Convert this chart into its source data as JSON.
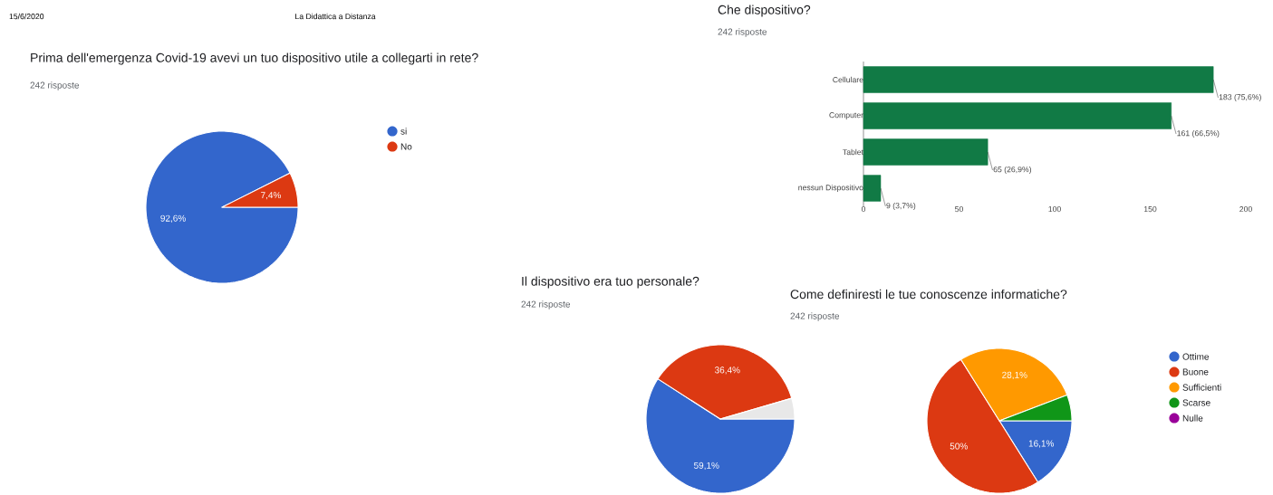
{
  "chart_data": [
    {
      "type": "pie",
      "title": "Prima dell'emergenza Covid-19 avevi un tuo dispositivo utile a collegarti in rete?",
      "subtitle": "242 risposte",
      "annotations": [
        "15/6/2020",
        "La Didattica a Distanza"
      ],
      "categories": [
        "si",
        "No"
      ],
      "values": [
        92.6,
        7.4
      ],
      "colors": [
        "#3366cc",
        "#dc3912"
      ],
      "value_labels": [
        "92,6%",
        "7,4%"
      ],
      "legend": "right"
    },
    {
      "type": "bar",
      "orientation": "horizontal",
      "title": "Che dispositivo?",
      "subtitle": "242 risposte",
      "categories": [
        "Cellulare",
        "Computer",
        "Tablet",
        "nessun Dispositivo"
      ],
      "values": [
        183,
        161,
        65,
        9
      ],
      "color": "#117a45",
      "value_labels": [
        "183 (75,6%)",
        "161 (66,5%)",
        "65 (26,9%)",
        "9 (3,7%)"
      ],
      "xlim": [
        0,
        200
      ],
      "xticks": [
        0,
        50,
        100,
        150,
        200
      ]
    },
    {
      "type": "pie",
      "title": "Il dispositivo era tuo personale?",
      "subtitle": "242 risposte",
      "categories": [
        null,
        null,
        null
      ],
      "values": [
        59.1,
        36.4,
        4.5
      ],
      "colors": [
        "#3366cc",
        "#dc3912",
        "#e8e8e8"
      ],
      "value_labels": [
        "59,1%",
        "36,4%",
        null
      ]
    },
    {
      "type": "pie",
      "title": "Come definiresti le tue conoscenze informatiche?",
      "subtitle": "242 risposte",
      "categories": [
        "Ottime",
        "Buone",
        "Sufficienti",
        "Scarse",
        "Nulle"
      ],
      "values": [
        16.1,
        50,
        28.1,
        5.8,
        0
      ],
      "colors": [
        "#3366cc",
        "#dc3912",
        "#ff9900",
        "#109618",
        "#990099"
      ],
      "value_labels": [
        "16,1%",
        "50%",
        "28,1%",
        null,
        null
      ],
      "legend": "right"
    }
  ]
}
